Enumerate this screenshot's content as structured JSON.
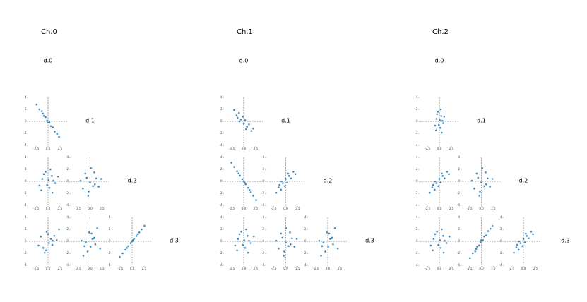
{
  "chart_data": [
    {
      "type": "scatter_matrix",
      "title": "Ch.0",
      "variables": [
        "d.0",
        "d.1",
        "d.2",
        "d.3"
      ],
      "color": "#1f77b4",
      "xlim": [
        -4,
        4
      ],
      "ylim": [
        -4,
        4
      ],
      "xticks": [
        -2.5,
        {
          "value": 0,
          "label": "0.0"
        },
        2.5
      ],
      "yticks": [
        -4,
        -2,
        0,
        2,
        4
      ],
      "cells": [
        [
          {
            "x": [
              -2.4,
              -1.8,
              -1.3,
              -0.9,
              -0.5,
              -0.2,
              0,
              0.3,
              0.6,
              1.0,
              1.4,
              1.9,
              2.3,
              -1.1
            ],
            "y": [
              2.8,
              2.0,
              1.7,
              0.9,
              0.7,
              0.1,
              -0.2,
              -0.2,
              -0.8,
              -1.0,
              -1.7,
              -2.1,
              -2.6,
              1.3
            ]
          }
        ],
        [
          {
            "x": [
              -1.2,
              0.3,
              0.8,
              -0.5,
              1.5,
              -1.8,
              0.1,
              0.9,
              -0.2,
              2.1,
              -0.9,
              0.5,
              -1.4,
              1.1
            ],
            "y": [
              0.4,
              -1.1,
              0.9,
              1.6,
              -0.3,
              -0.7,
              0.2,
              -1.9,
              -0.6,
              0.8,
              1.2,
              2.0,
              -1.5,
              0.1
            ]
          },
          {
            "x": [
              0.6,
              -1.0,
              1.3,
              -0.3,
              0.2,
              -2.0,
              1.8,
              -0.7,
              0.9,
              -1.5,
              0.0,
              2.3,
              -0.4,
              1.0
            ],
            "y": [
              -0.8,
              1.3,
              0.5,
              -1.7,
              2.2,
              0.1,
              -0.9,
              0.6,
              1.5,
              -1.2,
              -0.2,
              0.4,
              -2.4,
              -0.5
            ]
          }
        ],
        [
          {
            "x": [
              0.6,
              -1.0,
              1.3,
              -0.3,
              0.2,
              -2.0,
              1.8,
              -0.7,
              0.9,
              -1.5,
              0.0,
              2.3,
              -0.4,
              1.0
            ],
            "y": [
              0.4,
              -1.1,
              0.9,
              1.6,
              -0.3,
              -0.7,
              0.2,
              -1.9,
              -0.6,
              0.8,
              1.2,
              2.0,
              -1.5,
              0.1
            ]
          },
          {
            "x": [
              -1.2,
              0.3,
              0.8,
              -0.5,
              1.5,
              -1.8,
              0.1,
              0.9,
              -0.2,
              2.1,
              -0.9,
              0.5,
              -1.4,
              1.1
            ],
            "y": [
              -0.8,
              1.3,
              0.5,
              -1.7,
              2.2,
              0.1,
              -0.9,
              0.6,
              1.5,
              -1.2,
              -0.2,
              0.4,
              -2.4,
              -0.5
            ]
          },
          {
            "x": [
              -2.6,
              -2,
              -1.4,
              -0.8,
              -0.3,
              0,
              0.4,
              0.9,
              1.5,
              2,
              2.6,
              -1.1,
              1.2,
              0.2
            ],
            "y": [
              -2.6,
              -2,
              -1.4,
              -0.8,
              -0.3,
              0,
              0.4,
              0.9,
              1.5,
              2,
              2.6,
              -1.1,
              1.2,
              0.2
            ]
          }
        ]
      ]
    },
    {
      "type": "scatter_matrix",
      "title": "Ch.1",
      "variables": [
        "d.0",
        "d.1",
        "d.2",
        "d.3"
      ],
      "color": "#1f77b4",
      "xlim": [
        -4,
        4
      ],
      "ylim": [
        -4,
        4
      ],
      "xticks": [
        -2.5,
        {
          "value": 0,
          "label": "0.0"
        },
        2.5
      ],
      "yticks": [
        -4,
        -2,
        0,
        2,
        4
      ],
      "cells": [
        [
          {
            "x": [
              -2,
              -1.5,
              -1,
              -0.6,
              -0.2,
              0,
              0.3,
              0.7,
              1.1,
              1.6,
              2,
              -0.9,
              0.5,
              -1.3
            ],
            "y": [
              1.9,
              1.0,
              1.4,
              0.3,
              0.8,
              -0.4,
              0.2,
              -0.9,
              -0.5,
              -1.6,
              -1.2,
              0.0,
              -1.3,
              0.6
            ]
          }
        ],
        [
          {
            "x": [
              -2.6,
              -2,
              -1.4,
              -0.8,
              -0.3,
              0,
              0.4,
              0.9,
              1.5,
              2,
              2.6,
              -1.1,
              1.2,
              0.2
            ],
            "y": [
              3.12,
              2.4,
              1.68,
              0.96,
              0.36,
              0,
              -0.48,
              -1.08,
              -1.8,
              -2.4,
              -3.12,
              1.32,
              -1.44,
              -0.24
            ]
          },
          {
            "x": [
              -2,
              -1.5,
              -1,
              -0.6,
              -0.2,
              0,
              0.3,
              0.7,
              1.1,
              1.6,
              2,
              -0.9,
              0.5,
              -1.3
            ],
            "y": [
              -1.9,
              -1.0,
              -1.4,
              -0.3,
              -0.8,
              0.4,
              -0.2,
              0.9,
              0.5,
              1.6,
              1.2,
              0.0,
              1.3,
              -0.6
            ]
          }
        ],
        [
          {
            "x": [
              -1.2,
              0.3,
              0.8,
              -0.5,
              1.5,
              -1.8,
              0.1,
              0.9,
              -0.2,
              2.1,
              -0.9,
              0.5,
              -1.4,
              1.1
            ],
            "y": [
              0.4,
              -1.1,
              0.9,
              1.6,
              -0.3,
              -0.7,
              0.2,
              -1.9,
              -0.6,
              0.8,
              1.2,
              2.0,
              -1.5,
              0.1
            ]
          },
          {
            "x": [
              0.6,
              -1.0,
              1.3,
              -0.3,
              0.2,
              -2.0,
              1.8,
              -0.7,
              0.9,
              -1.5,
              0.0,
              2.3,
              -0.4,
              1.0
            ],
            "y": [
              -0.8,
              1.3,
              0.5,
              -1.7,
              2.2,
              0.1,
              -0.9,
              0.6,
              1.5,
              -1.2,
              -0.2,
              0.4,
              -2.4,
              -0.5
            ]
          },
          {
            "x": [
              -1.2,
              0.3,
              0.8,
              -0.5,
              1.5,
              -1.8,
              0.1,
              0.9,
              -0.2,
              2.1,
              -0.9,
              0.5,
              -1.4,
              1.1
            ],
            "y": [
              -0.8,
              1.3,
              0.5,
              -1.7,
              2.2,
              0.1,
              -0.9,
              0.6,
              1.5,
              -1.2,
              -0.2,
              0.4,
              -2.4,
              -0.5
            ]
          }
        ]
      ]
    },
    {
      "type": "scatter_matrix",
      "title": "Ch.2",
      "variables": [
        "d.0",
        "d.1",
        "d.2",
        "d.3"
      ],
      "color": "#1f77b4",
      "xlim": [
        -4,
        4
      ],
      "ylim": [
        -4,
        4
      ],
      "xticks": [
        -2.5,
        {
          "value": 0,
          "label": "0.0"
        },
        2.5
      ],
      "yticks": [
        -4,
        -2,
        0,
        2,
        4
      ],
      "cells": [
        [
          {
            "x": [
              -0.6,
              0.2,
              0.4,
              -0.3,
              0.8,
              -0.9,
              0.1,
              0.5,
              -0.1,
              1.0,
              -0.5,
              0.3,
              -0.7,
              0.6
            ],
            "y": [
              0.4,
              -1.1,
              0.9,
              1.6,
              -0.3,
              -0.7,
              0.2,
              -1.9,
              -0.6,
              0.8,
              1.2,
              2.0,
              -1.5,
              0.1
            ]
          }
        ],
        [
          {
            "x": [
              -2,
              -1.5,
              -1,
              -0.6,
              -0.2,
              0,
              0.3,
              0.7,
              1.1,
              1.6,
              2,
              -0.9,
              0.5,
              -1.3
            ],
            "y": [
              -1.9,
              -1.0,
              -1.4,
              -0.3,
              -0.8,
              0.4,
              -0.2,
              0.9,
              0.5,
              1.6,
              1.2,
              0.0,
              1.3,
              -0.6
            ]
          },
          {
            "x": [
              0.6,
              -1.0,
              1.3,
              -0.3,
              0.2,
              -2.0,
              1.8,
              -0.7,
              0.9,
              -1.5,
              0.0,
              2.3,
              -0.4,
              1.0
            ],
            "y": [
              -0.8,
              1.3,
              0.5,
              -1.7,
              2.2,
              0.1,
              -0.9,
              0.6,
              1.5,
              -1.2,
              -0.2,
              0.4,
              -2.4,
              -0.5
            ]
          }
        ],
        [
          {
            "x": [
              -1.2,
              0.3,
              0.8,
              -0.5,
              1.5,
              -1.8,
              0.1,
              0.9,
              -0.2,
              2.1,
              -0.9,
              0.5,
              -1.4,
              1.1
            ],
            "y": [
              0.4,
              -1.1,
              0.9,
              1.6,
              -0.3,
              -0.7,
              0.2,
              -1.9,
              -0.6,
              0.8,
              1.2,
              2.0,
              -1.5,
              0.1
            ]
          },
          {
            "x": [
              -2.4,
              -1.8,
              -1.3,
              -0.9,
              -0.5,
              -0.2,
              0,
              0.3,
              0.6,
              1.0,
              1.4,
              1.9,
              2.3,
              -1.1
            ],
            "y": [
              -2.8,
              -2.0,
              -1.7,
              -0.9,
              -0.7,
              -0.1,
              0.2,
              0.2,
              0.8,
              1.0,
              1.7,
              2.1,
              2.6,
              -1.3
            ]
          },
          {
            "x": [
              -2,
              -1.5,
              -1,
              -0.6,
              -0.2,
              0,
              0.3,
              0.7,
              1.1,
              1.6,
              2,
              -0.9,
              0.5,
              -1.3
            ],
            "y": [
              -1.9,
              -1.0,
              -1.4,
              -0.3,
              -0.8,
              0.4,
              -0.2,
              0.9,
              0.5,
              1.6,
              1.2,
              0.0,
              1.3,
              -0.6
            ]
          }
        ]
      ]
    }
  ]
}
